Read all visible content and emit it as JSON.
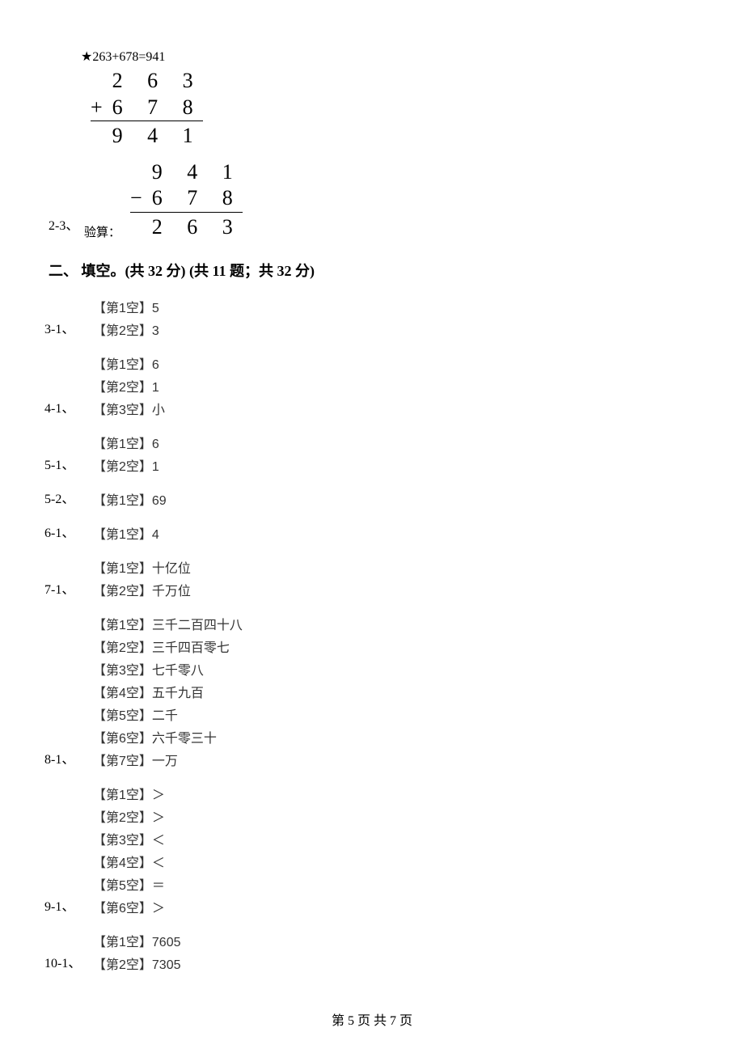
{
  "block23": {
    "label": "2-3、",
    "title": "★263+678=941",
    "add": {
      "row1": "2 6 3",
      "op": "+",
      "row2": "6 7 8",
      "result": "9 4 1"
    },
    "check_label": "验算：",
    "sub": {
      "row1": "9 4 1",
      "op": "−",
      "row2": "6 7 8",
      "result": "2 6 3"
    }
  },
  "section2_heading": "二、 填空。(共 32 分)  (共 11 题；共 32 分)",
  "answers": [
    {
      "label": "3-1、",
      "blanks": [
        "【第1空】5",
        "【第2空】3"
      ]
    },
    {
      "label": "4-1、",
      "blanks": [
        "【第1空】6",
        "【第2空】1",
        "【第3空】小"
      ]
    },
    {
      "label": "5-1、",
      "blanks": [
        "【第1空】6",
        "【第2空】1"
      ]
    },
    {
      "label": "5-2、",
      "blanks": [
        "【第1空】69"
      ]
    },
    {
      "label": "6-1、",
      "blanks": [
        "【第1空】4"
      ]
    },
    {
      "label": "7-1、",
      "blanks": [
        "【第1空】十亿位",
        "【第2空】千万位"
      ]
    },
    {
      "label": "8-1、",
      "blanks": [
        "【第1空】三千二百四十八",
        "【第2空】三千四百零七",
        "【第3空】七千零八",
        "【第4空】五千九百",
        "【第5空】二千",
        "【第6空】六千零三十",
        "【第7空】一万"
      ]
    },
    {
      "label": "9-1、",
      "blanks": [
        "【第1空】＞",
        "【第2空】＞",
        "【第3空】＜",
        "【第4空】＜",
        "【第5空】＝",
        "【第6空】＞"
      ]
    },
    {
      "label": "10-1、",
      "blanks": [
        "【第1空】7605",
        "【第2空】7305"
      ]
    }
  ],
  "footer": "第 5 页 共 7 页"
}
